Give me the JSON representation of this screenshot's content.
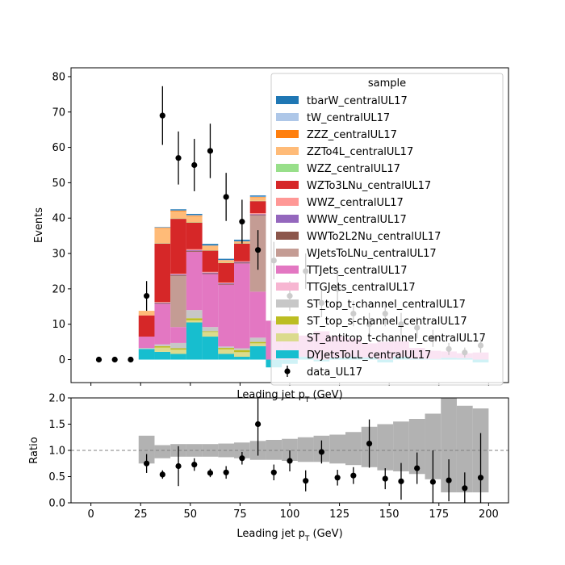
{
  "chart_data": {
    "type": "bar",
    "stacked": true,
    "x_unit": "GeV",
    "bin_edges": [
      24,
      32,
      40,
      48,
      56,
      64,
      72,
      80,
      88,
      96,
      104,
      112,
      120,
      128,
      136,
      144,
      152,
      160,
      168,
      176,
      184,
      192,
      200
    ],
    "series": [
      {
        "name": "DYJetsToLL_centralUL17",
        "color": "#17becf",
        "values": [
          3,
          2.2,
          1.6,
          10.5,
          6.5,
          1.6,
          0.8,
          3.8,
          -2.2,
          -1.2,
          0.8,
          -0.5,
          0.6,
          0.8,
          0.6,
          -0.8,
          0.8,
          0.3,
          0.2,
          0.5,
          0.4,
          -0.8
        ]
      },
      {
        "name": "ST_antitop_t-channel_centralUL17",
        "color": "#dbdb8d",
        "values": [
          0,
          1.2,
          1.2,
          0.6,
          1.3,
          1.3,
          1.3,
          0.8,
          0,
          0,
          0,
          0,
          0,
          0,
          0,
          0,
          0,
          0,
          0,
          0,
          0,
          0
        ]
      },
      {
        "name": "ST_top_s-channel_centralUL17",
        "color": "#bcbd22",
        "values": [
          0,
          0.4,
          0.4,
          0.6,
          0.2,
          0.4,
          0.6,
          0.4,
          0,
          0,
          0,
          0,
          0,
          0,
          0,
          0,
          0,
          0,
          0,
          0,
          0,
          0
        ]
      },
      {
        "name": "ST_top_t-channel_centralUL17",
        "color": "#c7c7c7",
        "values": [
          0.3,
          0.5,
          1.5,
          2.3,
          1.2,
          0.4,
          0.5,
          1.2,
          0,
          0,
          0,
          0,
          0,
          0,
          0,
          0,
          0,
          0,
          0,
          0,
          0,
          0
        ]
      },
      {
        "name": "TTGJets_centralUL17",
        "color": "#f7b6d2",
        "values": [
          0,
          0,
          0,
          0,
          0,
          0,
          0,
          0,
          0,
          0,
          0,
          0,
          0,
          0,
          0,
          0,
          0,
          0,
          0,
          0,
          0,
          0
        ]
      },
      {
        "name": "TTJets_centralUL17",
        "color": "#e377c2",
        "values": [
          3.2,
          11.5,
          4.5,
          16.5,
          15,
          17.5,
          24,
          13,
          11,
          10.5,
          6,
          8,
          6,
          5.2,
          4,
          5,
          4.4,
          3,
          2.3,
          1.8,
          1.4,
          2
        ]
      },
      {
        "name": "WJetsToLNu_centralUL17",
        "color": "#c49c94",
        "values": [
          0,
          0,
          14.5,
          0,
          0,
          0,
          0,
          21.5,
          0,
          0,
          0,
          0,
          0,
          0,
          0,
          0,
          0,
          0,
          0,
          0,
          0,
          0
        ]
      },
      {
        "name": "WWTo2L2Nu_centralUL17",
        "color": "#8c564b",
        "values": [
          0,
          0.2,
          0.2,
          0.2,
          0.2,
          0.2,
          0.2,
          0.2,
          0,
          0,
          0,
          0,
          0,
          0,
          0,
          0,
          0,
          0,
          0,
          0,
          0,
          0
        ]
      },
      {
        "name": "WWW_centralUL17",
        "color": "#9467bd",
        "values": [
          0,
          0.1,
          0.2,
          0.2,
          0.2,
          0.2,
          0.2,
          0.2,
          0,
          0,
          0,
          0,
          0,
          0,
          0,
          0,
          0,
          0,
          0,
          0,
          0,
          0
        ]
      },
      {
        "name": "WWZ_centralUL17",
        "color": "#ff9896",
        "values": [
          0,
          0.2,
          0.2,
          0.3,
          0.2,
          0.2,
          0.2,
          0.3,
          0,
          0,
          0,
          0,
          0,
          0,
          0,
          0,
          0,
          0,
          0,
          0,
          0,
          0
        ]
      },
      {
        "name": "WZTo3LNu_centralUL17",
        "color": "#d62728",
        "values": [
          6,
          16.5,
          15.5,
          7.5,
          6,
          5.5,
          5,
          3.4,
          0,
          0,
          0,
          0,
          0,
          0,
          0,
          0,
          0,
          0,
          0,
          0,
          0,
          0
        ]
      },
      {
        "name": "WZZ_centralUL17",
        "color": "#98df8a",
        "values": [
          0,
          0.1,
          0.1,
          0.1,
          0.1,
          0.1,
          0.1,
          0.1,
          0,
          0,
          0,
          0,
          0,
          0,
          0,
          0,
          0,
          0,
          0,
          0,
          0,
          0
        ]
      },
      {
        "name": "ZZTo4L_centralUL17",
        "color": "#ffbb78",
        "values": [
          1.3,
          4.3,
          2,
          1.7,
          1.2,
          0.6,
          0.4,
          1,
          0,
          0,
          0,
          0,
          0,
          0,
          0,
          0,
          0,
          0,
          0,
          0,
          0,
          0
        ]
      },
      {
        "name": "ZZZ_centralUL17",
        "color": "#ff7f0e",
        "values": [
          0,
          0.1,
          0.2,
          0.2,
          0.1,
          0.1,
          0.1,
          0.1,
          0,
          0,
          0,
          0,
          0,
          0,
          0,
          0,
          0,
          0,
          0,
          0,
          0,
          0
        ]
      },
      {
        "name": "tW_centralUL17",
        "color": "#aec7e8",
        "values": [
          0,
          0.1,
          0.1,
          0.2,
          0.1,
          0.1,
          0.1,
          0.1,
          0,
          0,
          0,
          0,
          0,
          0,
          0,
          0,
          0,
          0,
          0,
          0,
          0,
          0
        ]
      },
      {
        "name": "tbarW_centralUL17",
        "color": "#1f77b4",
        "values": [
          0,
          0.1,
          0.3,
          0.3,
          0.4,
          0.3,
          0.4,
          0.3,
          0,
          0,
          0,
          0,
          0,
          0,
          0,
          0,
          0,
          0,
          0,
          0,
          0,
          0
        ]
      }
    ],
    "data_series": {
      "name": "data_UL17",
      "x": [
        4,
        12,
        20,
        28,
        36,
        44,
        52,
        60,
        68,
        76,
        84,
        92,
        100,
        108,
        116,
        124,
        132,
        140,
        148,
        156,
        164,
        172,
        180,
        188,
        196
      ],
      "y": [
        0,
        0,
        0,
        18,
        69,
        57,
        55,
        59,
        46,
        39,
        31,
        28,
        18,
        25,
        16,
        20,
        13,
        10,
        13,
        10,
        9,
        6,
        3,
        2,
        4
      ],
      "y_err": [
        0,
        0,
        0,
        4.2,
        8.3,
        7.5,
        7.4,
        7.7,
        6.8,
        6.2,
        5.6,
        5.3,
        4.2,
        5,
        4,
        4.5,
        3.6,
        3.2,
        3.6,
        3.2,
        3,
        2.4,
        1.7,
        1.4,
        2
      ]
    },
    "ratio": {
      "ylabel": "Ratio",
      "ylim": [
        0,
        2
      ],
      "yticks": [
        "0.0",
        "0.5",
        "1.0",
        "1.5",
        "2.0"
      ],
      "band_lo": [
        0.75,
        0.85,
        0.88,
        0.88,
        0.88,
        0.87,
        0.85,
        0.82,
        0.82,
        0.8,
        0.78,
        0.78,
        0.75,
        0.72,
        0.68,
        0.62,
        0.6,
        0.55,
        0.45,
        0.2,
        0.2,
        0.2
      ],
      "band_hi": [
        1.28,
        1.1,
        1.12,
        1.12,
        1.12,
        1.13,
        1.15,
        1.18,
        1.2,
        1.22,
        1.25,
        1.28,
        1.3,
        1.35,
        1.45,
        1.5,
        1.55,
        1.6,
        1.7,
        2.0,
        1.85,
        1.8
      ],
      "points_x": [
        28,
        36,
        44,
        52,
        60,
        68,
        76,
        84,
        92,
        100,
        108,
        116,
        124,
        132,
        140,
        148,
        156,
        164,
        172,
        180,
        188,
        196
      ],
      "points_y": [
        0.75,
        0.54,
        0.7,
        0.73,
        0.57,
        0.58,
        0.85,
        1.5,
        0.58,
        0.8,
        0.42,
        0.97,
        0.48,
        0.52,
        1.13,
        0.46,
        0.41,
        0.66,
        0.4,
        0.43,
        0.28,
        0.48
      ],
      "points_err": [
        0.18,
        0.08,
        0.38,
        0.12,
        0.08,
        0.12,
        0.12,
        0.6,
        0.15,
        0.2,
        0.2,
        0.22,
        0.15,
        0.16,
        0.46,
        0.2,
        0.35,
        0.3,
        0.6,
        0.4,
        0.3,
        0.85
      ]
    },
    "xlabel": "Leading jet  p",
    "xlabel_sub": "T",
    "xlabel_unit": " (GeV)",
    "ylabel": "Events",
    "xlim": [
      -10,
      210
    ],
    "ylim": [
      -6.5,
      82.5
    ],
    "xticks": [
      "0",
      "25",
      "50",
      "75",
      "100",
      "125",
      "150",
      "175",
      "200"
    ],
    "yticks": [
      "0",
      "10",
      "20",
      "30",
      "40",
      "50",
      "60",
      "70",
      "80"
    ],
    "legend_title": "sample",
    "legend_position": "top-right",
    "grid": false
  }
}
